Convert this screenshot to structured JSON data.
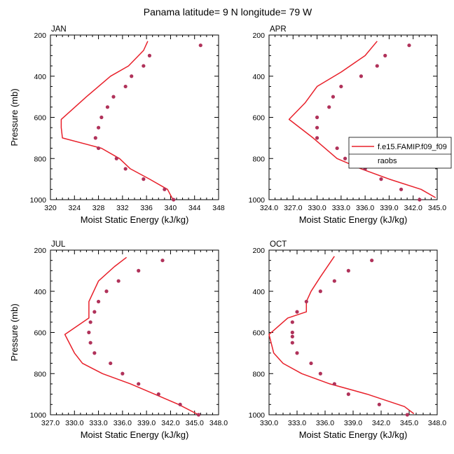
{
  "title": "Panama  latitude= 9 N longitude= 79 W",
  "colors": {
    "model_line": "#e8202a",
    "obs_marker": "#b0325a",
    "axis": "#000000"
  },
  "chart_data": [
    {
      "type": "line",
      "panel": "JAN",
      "xlabel": "Moist Static Energy (kJ/kg)",
      "ylabel": "Pressure (mb)",
      "xlim": [
        320,
        348
      ],
      "ylim": [
        1000,
        200
      ],
      "xticks": [
        320,
        324,
        328,
        332,
        336,
        340,
        344,
        348
      ],
      "xtick_labels": [
        "320",
        "324",
        "328",
        "332",
        "336",
        "340",
        "344",
        "348"
      ],
      "yticks": [
        200,
        400,
        600,
        800,
        1000
      ],
      "ytick_labels": [
        "200",
        "400",
        "600",
        "800",
        "1000"
      ],
      "model": {
        "x": [
          340.4,
          339.5,
          336.5,
          333.3,
          331.5,
          328.5,
          322.0,
          321.8,
          321.8,
          326.0,
          330.0,
          333.0,
          335.5,
          336.2
        ],
        "y": [
          1000,
          950,
          900,
          850,
          800,
          750,
          700,
          650,
          610,
          500,
          400,
          350,
          275,
          230
        ]
      },
      "obs": {
        "x": [
          340.5,
          339.0,
          335.5,
          332.5,
          331.0,
          328.0,
          327.5,
          328.0,
          328.5,
          329.5,
          330.5,
          332.5,
          333.5,
          335.5,
          336.5,
          345.0
        ],
        "y": [
          1000,
          950,
          900,
          850,
          800,
          750,
          700,
          650,
          600,
          550,
          500,
          450,
          400,
          350,
          300,
          250
        ]
      }
    },
    {
      "type": "line",
      "panel": "APR",
      "xlabel": "Moist Static Energy (kJ/kg)",
      "ylabel": "",
      "xlim": [
        324,
        345
      ],
      "ylim": [
        1000,
        200
      ],
      "xticks": [
        324,
        327,
        330,
        333,
        336,
        339,
        342,
        345
      ],
      "xtick_labels": [
        "324.0",
        "327.0",
        "330.0",
        "333.0",
        "336.0",
        "339.0",
        "342.0",
        "345.0"
      ],
      "yticks": [
        200,
        400,
        600,
        800,
        1000
      ],
      "ytick_labels": [
        "200",
        "400",
        "600",
        "800",
        "1000"
      ],
      "model": {
        "x": [
          344.8,
          343.0,
          339.0,
          335.5,
          332.5,
          329.5,
          326.5,
          328.5,
          330.0,
          333.0,
          336.0,
          337.5
        ],
        "y": [
          990,
          950,
          900,
          850,
          800,
          700,
          610,
          530,
          450,
          380,
          300,
          230
        ]
      },
      "obs": {
        "x": [
          342.8,
          340.5,
          338.0,
          336.0,
          335.5,
          333.5,
          332.5,
          330.0,
          330.0,
          330.0,
          331.5,
          332.0,
          333.0,
          335.5,
          337.5,
          338.5,
          341.5
        ],
        "y": [
          1000,
          950,
          900,
          850,
          810,
          800,
          750,
          700,
          650,
          600,
          550,
          500,
          450,
          400,
          350,
          300,
          250
        ]
      }
    },
    {
      "type": "line",
      "panel": "JUL",
      "xlabel": "Moist Static Energy (kJ/kg)",
      "ylabel": "Pressure (mb)",
      "xlim": [
        327,
        348
      ],
      "ylim": [
        1000,
        200
      ],
      "xticks": [
        327,
        330,
        333,
        336,
        339,
        342,
        345,
        348
      ],
      "xtick_labels": [
        "327.0",
        "330.0",
        "333.0",
        "336.0",
        "339.0",
        "342.0",
        "345.0",
        "348.0"
      ],
      "yticks": [
        200,
        400,
        600,
        800,
        1000
      ],
      "ytick_labels": [
        "200",
        "400",
        "600",
        "800",
        "1000"
      ],
      "model": {
        "x": [
          345.5,
          343.0,
          340.0,
          337.0,
          333.5,
          331.0,
          330.0,
          328.8,
          331.8,
          331.8,
          331.8,
          333.0,
          335.0,
          336.5
        ],
        "y": [
          1000,
          950,
          900,
          850,
          800,
          750,
          700,
          610,
          530,
          500,
          450,
          350,
          280,
          235
        ]
      },
      "obs": {
        "x": [
          345.5,
          343.2,
          340.5,
          338.0,
          336.0,
          334.5,
          332.5,
          332.0,
          331.8,
          332.0,
          332.5,
          333.0,
          334.0,
          335.5,
          338.0,
          341.0
        ],
        "y": [
          1000,
          950,
          900,
          850,
          800,
          750,
          700,
          650,
          600,
          550,
          500,
          450,
          400,
          350,
          300,
          250
        ]
      }
    },
    {
      "type": "line",
      "panel": "OCT",
      "xlabel": "Moist Static Energy (kJ/kg)",
      "ylabel": "",
      "xlim": [
        330,
        348
      ],
      "ylim": [
        1000,
        200
      ],
      "xticks": [
        330,
        333,
        336,
        339,
        342,
        345,
        348
      ],
      "xtick_labels": [
        "330.0",
        "333.0",
        "336.0",
        "339.0",
        "342.0",
        "345.0",
        "348.0"
      ],
      "yticks": [
        200,
        400,
        600,
        800,
        1000
      ],
      "ytick_labels": [
        "200",
        "400",
        "600",
        "800",
        "1000"
      ],
      "model": {
        "x": [
          345.5,
          344.5,
          340.5,
          336.5,
          333.5,
          331.5,
          330.5,
          330.0,
          332.0,
          334.0,
          334.0,
          334.5,
          335.5,
          337.0
        ],
        "y": [
          995,
          960,
          900,
          850,
          800,
          750,
          700,
          610,
          530,
          500,
          450,
          400,
          330,
          230
        ]
      },
      "obs": {
        "x": [
          344.8,
          341.8,
          338.5,
          337.0,
          335.5,
          334.5,
          333.0,
          332.5,
          332.5,
          332.5,
          332.5,
          333.0,
          334.0,
          335.5,
          337.0,
          338.5,
          341.0
        ],
        "y": [
          1000,
          950,
          900,
          850,
          800,
          750,
          700,
          650,
          620,
          600,
          550,
          500,
          450,
          400,
          350,
          300,
          250
        ]
      }
    }
  ],
  "legend": {
    "placement": "inside APR panel, right side",
    "entries": [
      {
        "label": "f.e15.FAMIP.f09_f09",
        "kind": "line"
      },
      {
        "label": "raobs",
        "kind": "marker"
      }
    ]
  }
}
